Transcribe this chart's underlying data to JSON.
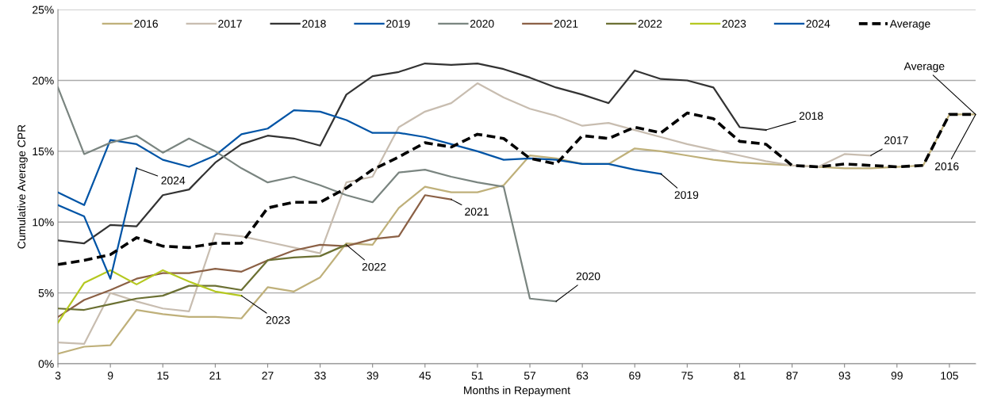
{
  "chart_data": {
    "type": "line",
    "xlabel": "Months in Repayment",
    "ylabel": "Cumulative Average CPR",
    "xlim": [
      3,
      108
    ],
    "xticks": [
      3,
      9,
      15,
      21,
      27,
      33,
      39,
      45,
      51,
      57,
      63,
      69,
      75,
      81,
      87,
      93,
      99,
      105
    ],
    "ylim": [
      0,
      25
    ],
    "yticks": [
      {
        "value": 0,
        "label": "0%"
      },
      {
        "value": 5,
        "label": "5%"
      },
      {
        "value": 10,
        "label": "10%"
      },
      {
        "value": 15,
        "label": "15%"
      },
      {
        "value": 20,
        "label": "20%"
      },
      {
        "value": 25,
        "label": "25%"
      }
    ],
    "grid": "y",
    "legend": "top",
    "marker": "none",
    "series": [
      {
        "name": "2016",
        "color": "#bfb07a",
        "x": [
          3,
          6,
          9,
          12,
          15,
          18,
          21,
          24,
          27,
          30,
          33,
          36,
          39,
          42,
          45,
          48,
          51,
          54,
          57,
          60,
          63,
          66,
          69,
          72,
          75,
          78,
          81,
          84,
          87,
          90,
          93,
          96,
          99,
          102,
          105,
          108
        ],
        "values": [
          0.7,
          1.2,
          1.3,
          3.8,
          3.5,
          3.3,
          3.3,
          3.2,
          5.4,
          5.1,
          6.1,
          8.5,
          8.4,
          11.0,
          12.5,
          12.1,
          12.1,
          12.6,
          14.7,
          14.5,
          14.1,
          14.1,
          15.2,
          15.0,
          14.7,
          14.4,
          14.2,
          14.1,
          14.0,
          13.9,
          13.8,
          13.8,
          13.9,
          14.0,
          17.6,
          17.6
        ]
      },
      {
        "name": "2017",
        "color": "#c8bdb0",
        "x": [
          3,
          6,
          9,
          12,
          15,
          18,
          21,
          24,
          27,
          30,
          33,
          36,
          39,
          42,
          45,
          48,
          51,
          54,
          57,
          60,
          63,
          66,
          69,
          72,
          75,
          78,
          81,
          84,
          87,
          90,
          93,
          96
        ],
        "values": [
          1.5,
          1.4,
          5.0,
          4.4,
          3.9,
          3.7,
          9.2,
          9.0,
          8.6,
          8.2,
          7.8,
          12.8,
          13.2,
          16.7,
          17.8,
          18.4,
          19.8,
          18.8,
          18.0,
          17.5,
          16.8,
          17.0,
          16.5,
          16.0,
          15.5,
          15.1,
          14.7,
          14.3,
          14.0,
          13.9,
          14.8,
          14.7
        ]
      },
      {
        "name": "2018",
        "color": "#333333",
        "x": [
          3,
          6,
          9,
          12,
          15,
          18,
          21,
          24,
          27,
          30,
          33,
          36,
          39,
          42,
          45,
          48,
          51,
          54,
          57,
          60,
          63,
          66,
          69,
          72,
          75,
          78,
          81,
          84
        ],
        "values": [
          8.7,
          8.5,
          9.8,
          9.7,
          11.9,
          12.3,
          14.2,
          15.5,
          16.1,
          15.9,
          15.4,
          19.0,
          20.3,
          20.6,
          21.2,
          21.1,
          21.2,
          20.8,
          20.2,
          19.5,
          19.0,
          18.4,
          20.7,
          20.1,
          20.0,
          19.5,
          16.7,
          16.5
        ]
      },
      {
        "name": "2019",
        "color": "#0054a6",
        "x": [
          3,
          6,
          9,
          12,
          15,
          18,
          21,
          24,
          27,
          30,
          33,
          36,
          39,
          42,
          45,
          48,
          51,
          54,
          57,
          60,
          63,
          66,
          69,
          72
        ],
        "values": [
          12.1,
          11.2,
          15.8,
          15.5,
          14.4,
          13.9,
          14.7,
          16.2,
          16.6,
          17.9,
          17.8,
          17.2,
          16.3,
          16.3,
          16.0,
          15.5,
          15.0,
          14.4,
          14.5,
          14.4,
          14.1,
          14.1,
          13.7,
          13.4
        ]
      },
      {
        "name": "2020",
        "color": "#7a8580",
        "x": [
          3,
          6,
          9,
          12,
          15,
          18,
          21,
          24,
          27,
          30,
          33,
          36,
          39,
          42,
          45,
          48,
          51,
          54,
          57,
          60
        ],
        "values": [
          19.5,
          14.8,
          15.6,
          16.1,
          14.9,
          15.9,
          15.0,
          13.8,
          12.8,
          13.2,
          12.6,
          11.9,
          11.4,
          13.5,
          13.7,
          13.2,
          12.8,
          12.5,
          4.6,
          4.4
        ]
      },
      {
        "name": "2021",
        "color": "#8b6045",
        "x": [
          3,
          6,
          9,
          12,
          15,
          18,
          21,
          24,
          27,
          30,
          33,
          36,
          39,
          42,
          45,
          48
        ],
        "values": [
          3.3,
          4.5,
          5.2,
          6.0,
          6.4,
          6.4,
          6.7,
          6.5,
          7.3,
          8.0,
          8.4,
          8.3,
          8.8,
          9.0,
          11.9,
          11.6
        ]
      },
      {
        "name": "2022",
        "color": "#6b7033",
        "x": [
          3,
          6,
          9,
          12,
          15,
          18,
          21,
          24,
          27,
          30,
          33,
          36
        ],
        "values": [
          3.9,
          3.8,
          4.2,
          4.6,
          4.8,
          5.5,
          5.5,
          5.2,
          7.3,
          7.5,
          7.6,
          8.4
        ]
      },
      {
        "name": "2023",
        "color": "#b5c820",
        "x": [
          3,
          6,
          9,
          12,
          15,
          18,
          21,
          24
        ],
        "values": [
          2.9,
          5.7,
          6.6,
          5.6,
          6.6,
          5.8,
          5.1,
          4.8
        ]
      },
      {
        "name": "2024",
        "color": "#0054a6",
        "x": [
          3,
          6,
          9,
          12
        ],
        "values": [
          11.2,
          10.4,
          6.0,
          13.8
        ]
      },
      {
        "name": "Average",
        "color": "#000000",
        "line_style": "dashed",
        "x": [
          3,
          6,
          9,
          12,
          15,
          18,
          21,
          24,
          27,
          30,
          33,
          36,
          39,
          42,
          45,
          48,
          51,
          54,
          57,
          60,
          63,
          66,
          69,
          72,
          75,
          78,
          81,
          84,
          87,
          90,
          93,
          96,
          99,
          102,
          105,
          108
        ],
        "values": [
          7.0,
          7.3,
          7.7,
          8.9,
          8.3,
          8.2,
          8.5,
          8.5,
          11.0,
          11.4,
          11.4,
          12.4,
          13.7,
          14.6,
          15.6,
          15.3,
          16.2,
          15.9,
          14.5,
          14.1,
          16.1,
          15.9,
          16.7,
          16.3,
          17.7,
          17.3,
          15.7,
          15.5,
          14.0,
          13.9,
          14.1,
          14.0,
          13.9,
          14.0,
          17.6,
          17.6
        ]
      }
    ]
  }
}
